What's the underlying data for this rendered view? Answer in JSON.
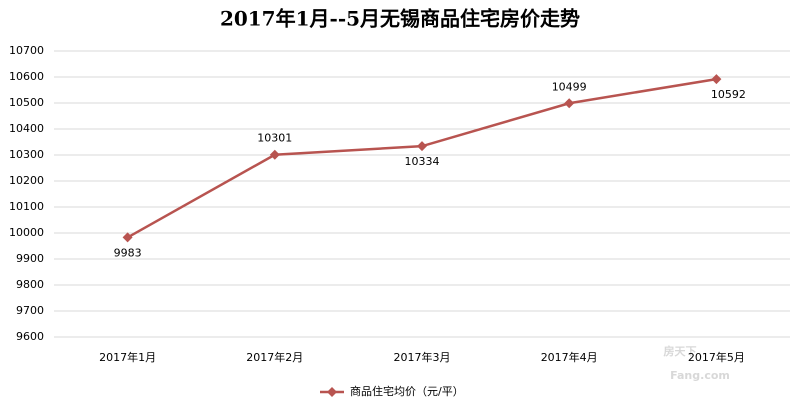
{
  "chart_data": {
    "type": "line",
    "title": "2017年1月--5月无锡商品住宅房价走势",
    "categories": [
      "2017年1月",
      "2017年2月",
      "2017年3月",
      "2017年4月",
      "2017年5月"
    ],
    "series": [
      {
        "name": "商品住宅均价（元/平）",
        "color": "#b85450",
        "values": [
          9983,
          10301,
          10334,
          10499,
          10592
        ]
      }
    ],
    "ylim": [
      9600,
      10700
    ],
    "yticks": [
      9600,
      9700,
      9800,
      9900,
      10000,
      10100,
      10200,
      10300,
      10400,
      10500,
      10600,
      10700
    ],
    "grid": true,
    "legend": "bottom",
    "data_labels": true,
    "watermark": [
      "房天下",
      "Fang.com"
    ]
  }
}
